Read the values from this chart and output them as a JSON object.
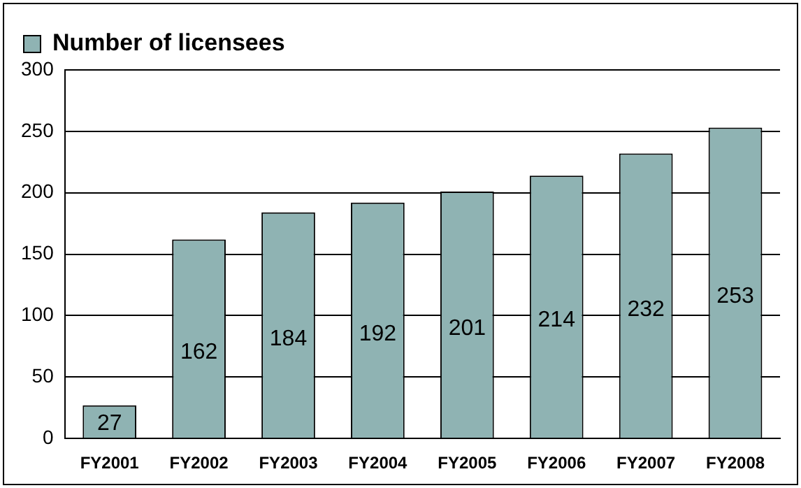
{
  "chart_data": {
    "type": "bar",
    "categories": [
      "FY2001",
      "FY2002",
      "FY2003",
      "FY2004",
      "FY2005",
      "FY2006",
      "FY2007",
      "FY2008"
    ],
    "series": [
      {
        "name": "Number of licensees",
        "color": "#8fb3b3",
        "values": [
          27,
          162,
          184,
          192,
          201,
          214,
          232,
          253
        ]
      }
    ],
    "ylim": [
      0,
      300
    ],
    "yticks": [
      0,
      50,
      100,
      150,
      200,
      250,
      300
    ],
    "grid": "y",
    "legend": "top left",
    "data_labels": true
  }
}
